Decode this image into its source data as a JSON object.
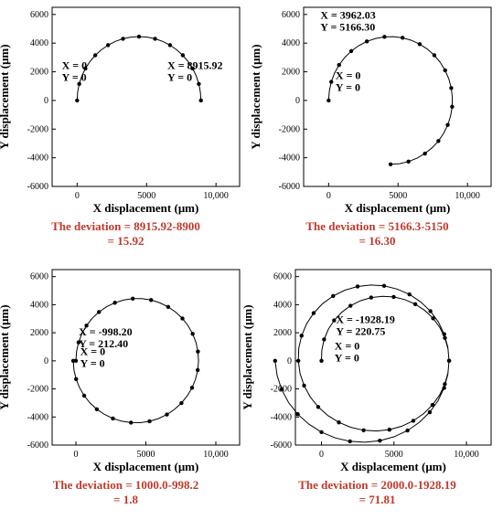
{
  "chart_data": [
    {
      "type": "scatter",
      "xlabel": "X displacement (μm)",
      "ylabel": "Y displacement (μm)",
      "xlim": [
        -1800,
        11700
      ],
      "ylim": [
        -6000,
        6500
      ],
      "xticks": [
        {
          "v": 0,
          "t": "0"
        },
        {
          "v": 5000,
          "t": "5000"
        },
        {
          "v": 10000,
          "t": "10,000"
        }
      ],
      "yticks": [
        {
          "v": 6000,
          "t": "6000"
        },
        {
          "v": 4000,
          "t": "4000"
        },
        {
          "v": 2000,
          "t": "2000"
        },
        {
          "v": 0,
          "t": "0"
        },
        {
          "v": -2000,
          "t": "-2000"
        },
        {
          "v": -4000,
          "t": "-4000"
        },
        {
          "v": -6000,
          "t": "-6000"
        }
      ],
      "path": {
        "cx": 4457.96,
        "cy": 0,
        "r": 4457.96,
        "start_deg": 180,
        "sweep_deg": 180,
        "points": 24
      },
      "annotations": [
        {
          "lines": [
            "X = 0",
            "Y = 0"
          ],
          "at": [
            -1100,
            2200
          ]
        },
        {
          "lines": [
            "X = 8915.92",
            "Y = 0"
          ],
          "at": [
            6500,
            2200
          ]
        }
      ],
      "deviation": [
        "The deviation = 8915.92-8900",
        "= 15.92"
      ]
    },
    {
      "type": "scatter",
      "xlabel": "X displacement (μm)",
      "ylabel": "Y displacement (μm)",
      "xlim": [
        -1800,
        11700
      ],
      "ylim": [
        -6000,
        6500
      ],
      "xticks": [
        {
          "v": 0,
          "t": "0"
        },
        {
          "v": 5000,
          "t": "5000"
        },
        {
          "v": 10000,
          "t": "10,000"
        }
      ],
      "yticks": [
        {
          "v": 6000,
          "t": "6000"
        },
        {
          "v": 4000,
          "t": "4000"
        },
        {
          "v": 2000,
          "t": "2000"
        },
        {
          "v": 0,
          "t": "0"
        },
        {
          "v": -2000,
          "t": "-2000"
        },
        {
          "v": -4000,
          "t": "-4000"
        },
        {
          "v": -6000,
          "t": "-6000"
        }
      ],
      "path": {
        "cx": 4457.96,
        "cy": 0,
        "r": 4457.96,
        "start_deg": 180,
        "sweep_deg": 270,
        "points": 32
      },
      "annotations": [
        {
          "lines": [
            "X = 3962.03",
            "Y = 5166.30"
          ],
          "at": [
            -600,
            5700
          ]
        },
        {
          "lines": [
            "X = 0",
            "Y = 0"
          ],
          "at": [
            500,
            1500
          ]
        }
      ],
      "deviation": [
        "The deviation = 5166.3-5150",
        "= 16.30"
      ]
    },
    {
      "type": "scatter",
      "xlabel": "X displacement (μm)",
      "ylabel": "Y displacement (μm)",
      "xlim": [
        -1700,
        11700
      ],
      "ylim": [
        -6000,
        6500
      ],
      "xticks": [
        {
          "v": 0,
          "t": "0"
        },
        {
          "v": 5000,
          "t": "5000"
        },
        {
          "v": 10000,
          "t": "10,000"
        }
      ],
      "yticks": [
        {
          "v": 6000,
          "t": "6000"
        },
        {
          "v": 4000,
          "t": "4000"
        },
        {
          "v": 2000,
          "t": "2000"
        },
        {
          "v": 0,
          "t": "0"
        },
        {
          "v": -2000,
          "t": "-2000"
        },
        {
          "v": -4000,
          "t": "-4000"
        },
        {
          "v": -6000,
          "t": "-6000"
        }
      ],
      "path": {
        "cx": 3957.96,
        "cy": 0,
        "r": 4800,
        "rx_shift": -500,
        "start_deg": 180,
        "sweep_deg": 360,
        "points": 42
      },
      "annotations": [
        {
          "lines": [
            "X = -998.20",
            "Y = 212.40"
          ],
          "at": [
            200,
            1800
          ]
        },
        {
          "lines": [
            "X = 0",
            "Y = 0"
          ],
          "at": [
            300,
            400
          ]
        }
      ],
      "deviation": [
        "The deviation = 1000.0-998.2",
        "= 1.8"
      ]
    },
    {
      "type": "scatter",
      "xlabel": "X displacement (μm)",
      "ylabel": "Y displacement (μm)",
      "xlim": [
        -1800,
        11700
      ],
      "ylim": [
        -6000,
        6500
      ],
      "xticks": [
        {
          "v": 0,
          "t": "0"
        },
        {
          "v": 5000,
          "t": "5000"
        },
        {
          "v": 10000,
          "t": "10,000"
        }
      ],
      "yticks": [
        {
          "v": 6000,
          "t": "6000"
        },
        {
          "v": 4000,
          "t": "4000"
        },
        {
          "v": 2000,
          "t": "2000"
        },
        {
          "v": 0,
          "t": "0"
        },
        {
          "v": -2000,
          "t": "-2000"
        },
        {
          "v": -4000,
          "t": "-4000"
        },
        {
          "v": -6000,
          "t": "-6000"
        }
      ],
      "path": {
        "cx": 4400,
        "cy": 0,
        "r": 4400,
        "spiral_dr": 800,
        "start_deg": 180,
        "sweep_deg": 720,
        "points": 72
      },
      "annotations": [
        {
          "lines": [
            "X = -1928.19",
            "Y = 220.75"
          ],
          "at": [
            1000,
            2700
          ]
        },
        {
          "lines": [
            "X = 0",
            "Y = 0"
          ],
          "at": [
            900,
            800
          ]
        }
      ],
      "deviation": [
        "The deviation = 2000.0-1928.19",
        "= 71.81"
      ]
    }
  ]
}
